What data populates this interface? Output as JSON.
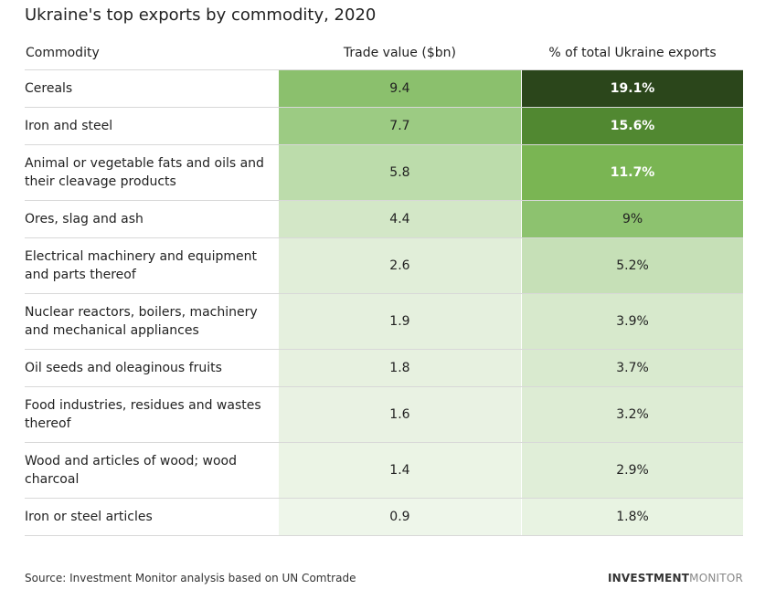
{
  "title": "Ukraine's top exports by commodity, 2020",
  "source": "Source: Investment Monitor analysis based on UN Comtrade",
  "logo": {
    "bold": "INVESTMENT",
    "light": "MONITOR"
  },
  "chart_data": {
    "type": "table",
    "title": "Ukraine's top exports by commodity, 2020",
    "columns": [
      "Commodity",
      "Trade value ($bn)",
      "% of total Ukraine exports"
    ],
    "rows": [
      [
        "Cereals",
        "9.4",
        "19.1%"
      ],
      [
        "Iron and steel",
        "7.7",
        "15.6%"
      ],
      [
        "Animal or vegetable fats and oils and their cleavage products",
        "5.8",
        "11.7%"
      ],
      [
        "Ores, slag and ash",
        "4.4",
        "9%"
      ],
      [
        "Electrical machinery and equipment and parts thereof",
        "2.6",
        "5.2%"
      ],
      [
        "Nuclear reactors, boilers, machinery and mechanical appliances",
        "1.9",
        "3.9%"
      ],
      [
        "Oil seeds and oleaginous fruits",
        "1.8",
        "3.7%"
      ],
      [
        "Food industries, residues and wastes thereof",
        "1.6",
        "3.2%"
      ],
      [
        "Wood and articles of wood; wood charcoal",
        "1.4",
        "2.9%"
      ],
      [
        "Iron or steel articles",
        "0.9",
        "1.8%"
      ]
    ],
    "value_colors": [
      "#8bc06d",
      "#9ccb83",
      "#bcdcab",
      "#d3e7c7",
      "#e1eed9",
      "#e5f0de",
      "#e7f1e0",
      "#e9f2e3",
      "#ebf4e5",
      "#eef6ea"
    ],
    "pct_colors": [
      "#2b461b",
      "#518831",
      "#7ab553",
      "#8dc26f",
      "#c6e0b7",
      "#d7e9cc",
      "#d9eacf",
      "#ddecd4",
      "#e0eed8",
      "#e8f3e2"
    ]
  }
}
